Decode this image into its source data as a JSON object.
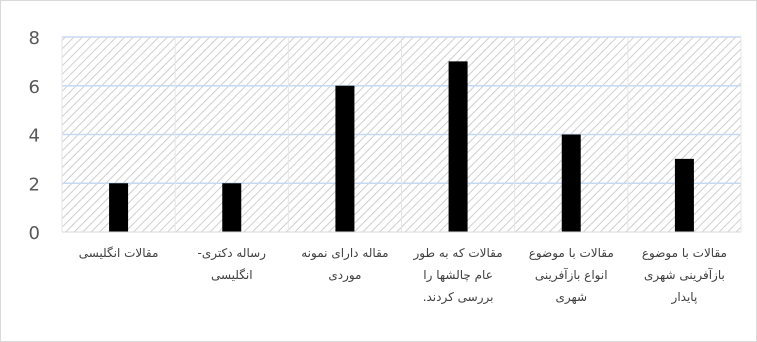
{
  "chart_data": {
    "type": "bar",
    "title": "",
    "xlabel": "",
    "ylabel": "",
    "ylim": [
      0,
      8
    ],
    "yticks": [
      0,
      2,
      4,
      6,
      8
    ],
    "grid": true,
    "background_pattern": "diagonal-hatch",
    "bar_color": "#000000",
    "categories": [
      "مقالات انگلیسی",
      "رساله دکتری- انگلیسی",
      "مقاله دارای نمونه موردی",
      "مقالات که به طور عام چالشها را بررسی کردند.",
      "مقالات با موضوع انواع بازآفرینی شهری",
      "مقالات با موضوع بازآفرینی شهری پایدار"
    ],
    "category_lines": [
      [
        "مقالات انگلیسی"
      ],
      [
        "رساله دکتری-",
        "انگلیسی"
      ],
      [
        "مقاله دارای نمونه",
        "موردی"
      ],
      [
        "مقالات که به طور",
        "عام چالشها را",
        "بررسی کردند."
      ],
      [
        "مقالات با موضوع",
        "انواع بازآفرینی",
        "شهری"
      ],
      [
        "مقالات با موضوع",
        "بازآفرینی شهری",
        "پایدار"
      ]
    ],
    "values": [
      2,
      2,
      6,
      7,
      4,
      3
    ]
  }
}
